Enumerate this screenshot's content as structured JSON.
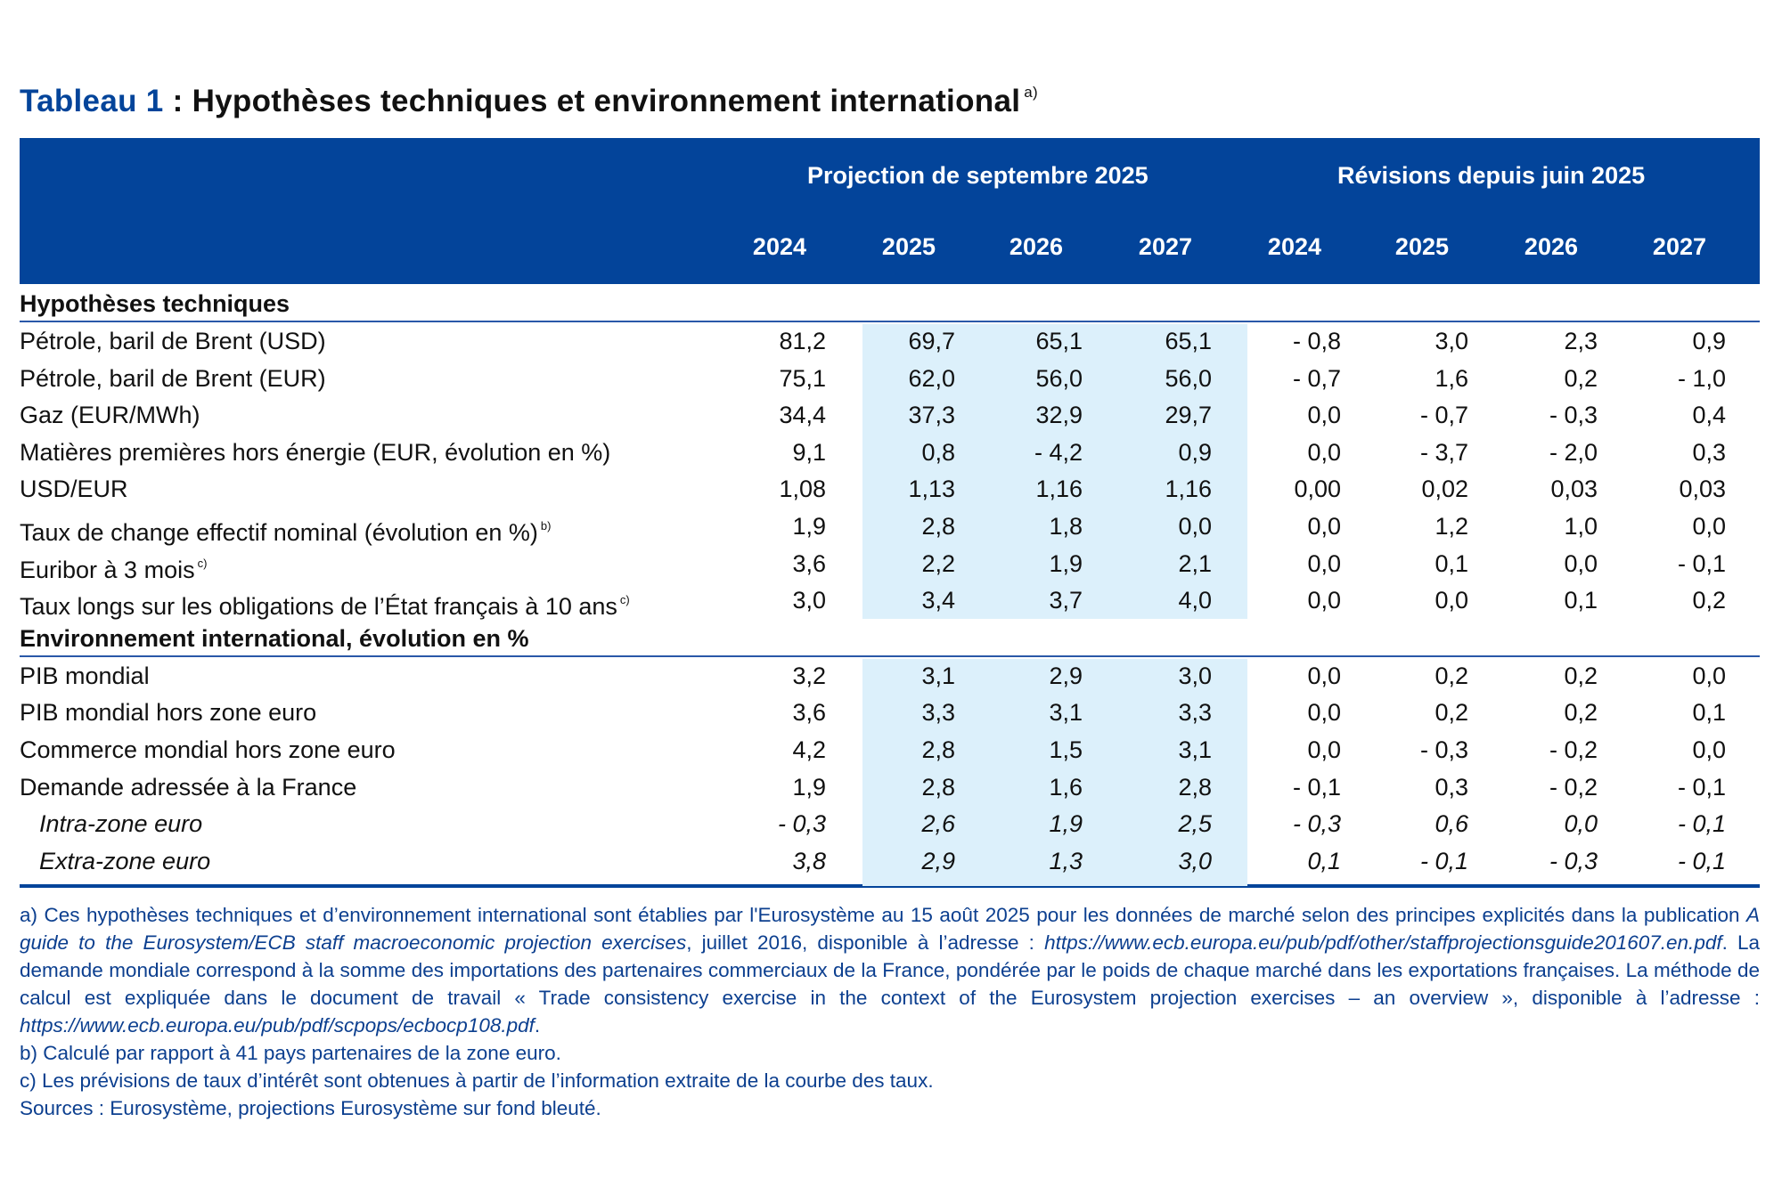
{
  "title": {
    "number": "Tableau 1",
    "text": " : Hypothèses techniques et environnement international",
    "note_ref": "a)"
  },
  "header": {
    "group_projection": "Projection de septembre 2025",
    "group_revisions": "Révisions depuis juin 2025",
    "years": [
      "2024",
      "2025",
      "2026",
      "2027",
      "2024",
      "2025",
      "2026",
      "2027"
    ]
  },
  "sections": [
    {
      "title": "Hypothèses techniques",
      "rows": [
        {
          "label": "Pétrole, baril de Brent (USD)",
          "note": "",
          "italic": false,
          "values": [
            "81,2",
            "69,7",
            "65,1",
            "65,1",
            "- 0,8",
            "3,0",
            "2,3",
            "0,9"
          ]
        },
        {
          "label": "Pétrole, baril de Brent (EUR)",
          "note": "",
          "italic": false,
          "values": [
            "75,1",
            "62,0",
            "56,0",
            "56,0",
            "- 0,7",
            "1,6",
            "0,2",
            "- 1,0"
          ]
        },
        {
          "label": "Gaz (EUR/MWh)",
          "note": "",
          "italic": false,
          "values": [
            "34,4",
            "37,3",
            "32,9",
            "29,7",
            "0,0",
            "- 0,7",
            "- 0,3",
            "0,4"
          ]
        },
        {
          "label": "Matières premières hors énergie (EUR, évolution en %)",
          "note": "",
          "italic": false,
          "values": [
            "9,1",
            "0,8",
            "- 4,2",
            "0,9",
            "0,0",
            "- 3,7",
            "- 2,0",
            "0,3"
          ]
        },
        {
          "label": "USD/EUR",
          "note": "",
          "italic": false,
          "values": [
            "1,08",
            "1,13",
            "1,16",
            "1,16",
            "0,00",
            "0,02",
            "0,03",
            "0,03"
          ]
        },
        {
          "label": "Taux de change effectif nominal (évolution en %)",
          "note": "b)",
          "italic": false,
          "values": [
            "1,9",
            "2,8",
            "1,8",
            "0,0",
            "0,0",
            "1,2",
            "1,0",
            "0,0"
          ]
        },
        {
          "label": "Euribor à 3 mois",
          "note": "c)",
          "italic": false,
          "values": [
            "3,6",
            "2,2",
            "1,9",
            "2,1",
            "0,0",
            "0,1",
            "0,0",
            "- 0,1"
          ]
        },
        {
          "label": "Taux longs sur les obligations de l’État français à 10 ans",
          "note": "c)",
          "italic": false,
          "values": [
            "3,0",
            "3,4",
            "3,7",
            "4,0",
            "0,0",
            "0,0",
            "0,1",
            "0,2"
          ]
        }
      ]
    },
    {
      "title": "Environnement international, évolution en %",
      "rows": [
        {
          "label": "PIB mondial",
          "note": "",
          "italic": false,
          "values": [
            "3,2",
            "3,1",
            "2,9",
            "3,0",
            "0,0",
            "0,2",
            "0,2",
            "0,0"
          ]
        },
        {
          "label": "PIB mondial hors zone euro",
          "note": "",
          "italic": false,
          "values": [
            "3,6",
            "3,3",
            "3,1",
            "3,3",
            "0,0",
            "0,2",
            "0,2",
            "0,1"
          ]
        },
        {
          "label": "Commerce mondial hors zone euro",
          "note": "",
          "italic": false,
          "values": [
            "4,2",
            "2,8",
            "1,5",
            "3,1",
            "0,0",
            "- 0,3",
            "- 0,2",
            "0,0"
          ]
        },
        {
          "label": "Demande adressée à la France",
          "note": "",
          "italic": false,
          "values": [
            "1,9",
            "2,8",
            "1,6",
            "2,8",
            "- 0,1",
            "0,3",
            "- 0,2",
            "- 0,1"
          ]
        },
        {
          "label": "Intra-zone euro",
          "note": "",
          "italic": true,
          "values": [
            "- 0,3",
            "2,6",
            "1,9",
            "2,5",
            "- 0,3",
            "0,6",
            "0,0",
            "- 0,1"
          ]
        },
        {
          "label": "Extra-zone euro",
          "note": "",
          "italic": true,
          "values": [
            "3,8",
            "2,9",
            "1,3",
            "3,0",
            "0,1",
            "- 0,1",
            "- 0,3",
            "- 0,1"
          ]
        }
      ]
    }
  ],
  "notes": {
    "a_parts": [
      {
        "t": "a)  Ces hypothèses techniques et d’environnement international sont établies par l'Eurosystème au 15 août 2025 pour les données de marché selon des principes explicités dans la publication ",
        "i": false
      },
      {
        "t": "A guide to the Eurosystem/ECB staff macroeconomic projection exercises",
        "i": true
      },
      {
        "t": ", juillet 2016, disponible à l’adresse : ",
        "i": false
      },
      {
        "t": "https://www.ecb.europa.eu/pub/pdf/other/staffprojectionsguide201607.en.pdf",
        "i": true
      },
      {
        "t": ". La demande mondiale correspond à la somme des importations des partenaires commerciaux de la France, pondérée par le poids de chaque marché dans les exportations françaises. La méthode de calcul est expliquée dans le document de travail « Trade consistency exercise in the context of the Eurosystem projection exercises – an overview », disponible à l’adresse : ",
        "i": false
      },
      {
        "t": "https://www.ecb.europa.eu/pub/pdf/scpops/ecbocp108.pdf",
        "i": true
      },
      {
        "t": ".",
        "i": false
      }
    ],
    "b": "b)  Calculé par rapport à 41 pays partenaires de la zone euro.",
    "c": "c)  Les prévisions de taux d’intérêt sont obtenues à partir de l’information extraite de la courbe des taux.",
    "sources": "Sources : Eurosystème, projections Eurosystème sur fond bleuté."
  },
  "colors": {
    "header_bg": "#03449a",
    "projection_shade": "#dcf0fb",
    "notes_text": "#0c3f8f"
  }
}
